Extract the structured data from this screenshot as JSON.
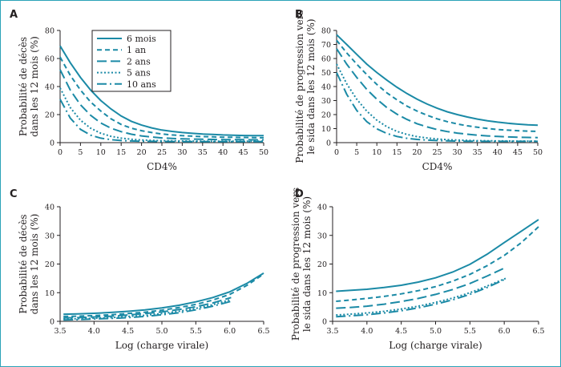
{
  "colors": {
    "line": "#1b8aa6",
    "text": "#231f20",
    "frame": "#2aa3b8"
  },
  "legend": [
    {
      "label": "6 mois",
      "dash": "solid"
    },
    {
      "label": "1 an",
      "dash": "dashed"
    },
    {
      "label": "2 ans",
      "dash": "longdash"
    },
    {
      "label": "5 ans",
      "dash": "dotted"
    },
    {
      "label": "10 ans",
      "dash": "dashdot"
    }
  ],
  "chart_data": [
    {
      "panel": "A",
      "type": "line",
      "xlabel": "CD4%",
      "ylabel": [
        "Probabilité de décès",
        "dans les 12 mois (%)"
      ],
      "xlim": [
        0,
        50
      ],
      "ylim": [
        0,
        80
      ],
      "xticks": [
        0,
        5,
        10,
        15,
        20,
        25,
        30,
        35,
        40,
        45,
        50
      ],
      "yticks": [
        0,
        20,
        40,
        60,
        80
      ],
      "show_legend": true,
      "series": [
        {
          "name": "6 mois",
          "dash": "solid",
          "x": [
            0,
            2.5,
            5,
            7.5,
            10,
            12.5,
            15,
            17.5,
            20,
            22.5,
            25,
            27.5,
            30,
            32.5,
            35,
            37.5,
            40,
            42.5,
            45,
            47.5,
            50
          ],
          "y": [
            69,
            57,
            46.5,
            37.5,
            30,
            24,
            19,
            15.2,
            12.5,
            10.5,
            9,
            8,
            7.2,
            6.6,
            6.1,
            5.8,
            5.5,
            5.3,
            5.1,
            5.0,
            5.0
          ]
        },
        {
          "name": "1 an",
          "dash": "dashed",
          "x": [
            0,
            2.5,
            5,
            7.5,
            10,
            12.5,
            15,
            17.5,
            20,
            22.5,
            25,
            27.5,
            30,
            32.5,
            35,
            37.5,
            40,
            42.5,
            45,
            47.5,
            50
          ],
          "y": [
            61,
            48,
            37.5,
            29,
            22.5,
            17,
            13,
            10.3,
            8.5,
            7.2,
            6.2,
            5.5,
            5,
            4.6,
            4.3,
            4.1,
            3.9,
            3.8,
            3.7,
            3.6,
            3.5
          ]
        },
        {
          "name": "2 ans",
          "dash": "longdash",
          "x": [
            0,
            2.5,
            5,
            7.5,
            10,
            12.5,
            15,
            17.5,
            20,
            22.5,
            25,
            27.5,
            30,
            32.5,
            35,
            37.5,
            40,
            42.5,
            45,
            47.5,
            50
          ],
          "y": [
            52,
            37.5,
            27,
            19.5,
            14,
            10.3,
            7.8,
            6,
            4.8,
            4,
            3.4,
            3,
            2.7,
            2.5,
            2.4,
            2.3,
            2.2,
            2.1,
            2.1,
            2.0,
            2.0
          ]
        },
        {
          "name": "5 ans",
          "dash": "dotted",
          "x": [
            0,
            2.5,
            5,
            7.5,
            10,
            12.5,
            15,
            17.5,
            20,
            22.5,
            25,
            27.5,
            30,
            32.5,
            35,
            37.5,
            40,
            42.5,
            45,
            47.5,
            50
          ],
          "y": [
            39,
            25,
            16,
            10.3,
            6.7,
            4.5,
            3.2,
            2.4,
            1.9,
            1.6,
            1.4,
            1.3,
            1.2,
            1.1,
            1.1,
            1.0,
            1.0,
            1.0,
            1.0,
            1.0,
            1.0
          ]
        },
        {
          "name": "10 ans",
          "dash": "dashdot",
          "x": [
            0,
            2.5,
            5,
            7.5,
            10,
            12.5,
            15,
            17.5,
            20,
            22.5,
            25,
            27.5,
            30,
            32.5,
            35,
            37.5,
            40,
            42.5,
            45,
            47.5,
            50
          ],
          "y": [
            31,
            17.5,
            9.5,
            5.3,
            3.2,
            2.1,
            1.5,
            1.2,
            1.0,
            0.9,
            0.8,
            0.8,
            0.7,
            0.7,
            0.7,
            0.7,
            0.7,
            0.7,
            0.7,
            0.7,
            0.7
          ]
        }
      ]
    },
    {
      "panel": "B",
      "type": "line",
      "xlabel": "CD4%",
      "ylabel": [
        "Probabilité de progression vers",
        "le sida dans les 12 mois (%)"
      ],
      "xlim": [
        0,
        50
      ],
      "ylim": [
        0,
        80
      ],
      "xticks": [
        0,
        5,
        10,
        15,
        20,
        25,
        30,
        35,
        40,
        45,
        50
      ],
      "yticks": [
        0,
        10,
        20,
        30,
        40,
        50,
        60,
        70,
        80
      ],
      "show_legend": false,
      "series": [
        {
          "name": "6 mois",
          "dash": "solid",
          "x": [
            0,
            2.5,
            5,
            7.5,
            10,
            12.5,
            15,
            17.5,
            20,
            22.5,
            25,
            27.5,
            30,
            32.5,
            35,
            37.5,
            40,
            42.5,
            45,
            47.5,
            50
          ],
          "y": [
            77,
            70,
            63,
            56,
            50,
            44.5,
            39.5,
            35,
            31,
            27.5,
            24.5,
            22,
            20,
            18.3,
            16.8,
            15.6,
            14.6,
            13.8,
            13.2,
            12.7,
            12.4
          ]
        },
        {
          "name": "1 an",
          "dash": "dashed",
          "x": [
            0,
            2.5,
            5,
            7.5,
            10,
            12.5,
            15,
            17.5,
            20,
            22.5,
            25,
            27.5,
            30,
            32.5,
            35,
            37.5,
            40,
            42.5,
            45,
            47.5,
            50
          ],
          "y": [
            73,
            64,
            56,
            48.5,
            41.5,
            35.5,
            30.5,
            26,
            22.5,
            19.5,
            17,
            15,
            13.3,
            12,
            11,
            10.1,
            9.4,
            8.9,
            8.5,
            8.2,
            8.0
          ]
        },
        {
          "name": "2 ans",
          "dash": "longdash",
          "x": [
            0,
            2.5,
            5,
            7.5,
            10,
            12.5,
            15,
            17.5,
            20,
            22.5,
            25,
            27.5,
            30,
            32.5,
            35,
            37.5,
            40,
            42.5,
            45,
            47.5,
            50
          ],
          "y": [
            67,
            56,
            46.5,
            38,
            31,
            25,
            20.3,
            16.5,
            13.5,
            11.2,
            9.3,
            7.9,
            6.8,
            6,
            5.3,
            4.8,
            4.4,
            4.1,
            3.9,
            3.7,
            3.6
          ]
        },
        {
          "name": "5 ans",
          "dash": "dotted",
          "x": [
            0,
            2.5,
            5,
            7.5,
            10,
            12.5,
            15,
            17.5,
            20,
            22.5,
            25,
            27.5,
            30,
            32.5,
            35,
            37.5,
            40,
            42.5,
            45,
            47.5,
            50
          ],
          "y": [
            56,
            42,
            31,
            22.5,
            16,
            11.3,
            8,
            5.8,
            4.3,
            3.3,
            2.6,
            2.1,
            1.8,
            1.6,
            1.4,
            1.3,
            1.2,
            1.2,
            1.1,
            1.1,
            1.1
          ]
        },
        {
          "name": "10 ans",
          "dash": "dashdot",
          "x": [
            0,
            2.5,
            5,
            7.5,
            10,
            12.5,
            15,
            17.5,
            20,
            22.5,
            25,
            27.5,
            30,
            32.5,
            35,
            37.5,
            40,
            42.5,
            45,
            47.5,
            50
          ],
          "y": [
            50,
            34.5,
            23,
            15,
            9.8,
            6.5,
            4.4,
            3.1,
            2.3,
            1.8,
            1.5,
            1.3,
            1.1,
            1.0,
            1.0,
            0.9,
            0.9,
            0.9,
            0.9,
            0.9,
            0.9
          ]
        }
      ]
    },
    {
      "panel": "C",
      "type": "line",
      "xlabel": "Log (charge virale)",
      "ylabel": [
        "Probabilité de décès",
        "dans les 12 mois (%)"
      ],
      "xlim": [
        3.5,
        6.5
      ],
      "ylim": [
        0,
        40
      ],
      "xticks": [
        3.5,
        4.0,
        4.5,
        5.0,
        5.5,
        6.0,
        6.5
      ],
      "xtick_labels": [
        "3.5",
        "4.0",
        "4.5",
        "5.0",
        "5.5",
        "6.0",
        "6.5"
      ],
      "yticks": [
        0,
        10,
        20,
        30,
        40
      ],
      "show_legend": false,
      "series": [
        {
          "name": "6 mois",
          "dash": "solid",
          "x": [
            3.55,
            3.75,
            4.0,
            4.25,
            4.5,
            4.75,
            5.0,
            5.25,
            5.5,
            5.75,
            6.0,
            6.25,
            6.5
          ],
          "y": [
            2.5,
            2.6,
            2.8,
            3.1,
            3.5,
            4.0,
            4.7,
            5.6,
            6.8,
            8.3,
            10.3,
            13.2,
            16.8
          ]
        },
        {
          "name": "1 an",
          "dash": "dashed",
          "x": [
            3.55,
            3.75,
            4.0,
            4.25,
            4.5,
            4.75,
            5.0,
            5.25,
            5.5,
            5.75,
            6.0,
            6.25,
            6.5
          ],
          "y": [
            1.7,
            1.8,
            2.0,
            2.3,
            2.7,
            3.2,
            3.9,
            4.8,
            5.9,
            7.4,
            9.4,
            12.5,
            16.5
          ]
        },
        {
          "name": "2 ans",
          "dash": "longdash",
          "x": [
            3.55,
            3.75,
            4.0,
            4.25,
            4.5,
            4.75,
            5.0,
            5.25,
            5.5,
            5.75,
            6.02
          ],
          "y": [
            1.2,
            1.3,
            1.5,
            1.8,
            2.2,
            2.7,
            3.3,
            4.1,
            5.1,
            6.4,
            8.3
          ]
        },
        {
          "name": "5 ans",
          "dash": "dotted",
          "x": [
            3.55,
            3.75,
            4.0,
            4.25,
            4.5,
            4.75,
            5.0,
            5.25,
            5.5,
            5.75,
            6.02
          ],
          "y": [
            0.8,
            0.9,
            1.1,
            1.3,
            1.7,
            2.1,
            2.7,
            3.5,
            4.5,
            5.8,
            7.6
          ]
        },
        {
          "name": "10 ans",
          "dash": "dashdot",
          "x": [
            3.55,
            3.75,
            4.0,
            4.25,
            4.5,
            4.75,
            5.0,
            5.25,
            5.5,
            5.75,
            6.02
          ],
          "y": [
            0.5,
            0.6,
            0.8,
            1.0,
            1.3,
            1.7,
            2.3,
            3.0,
            4.0,
            5.3,
            7.0
          ]
        }
      ]
    },
    {
      "panel": "D",
      "type": "line",
      "xlabel": "Log (charge virale)",
      "ylabel": [
        "Probabilité de progression vers",
        "le sida dans les 12 mois (%)"
      ],
      "xlim": [
        3.5,
        6.5
      ],
      "ylim": [
        0,
        40
      ],
      "xticks": [
        3.5,
        4.0,
        4.5,
        5.0,
        5.5,
        6.0,
        6.5
      ],
      "xtick_labels": [
        "3.5",
        "4.0",
        "4.5",
        "5.0",
        "5.5",
        "6.0",
        "6.5"
      ],
      "yticks": [
        0,
        10,
        20,
        30,
        40
      ],
      "show_legend": false,
      "series": [
        {
          "name": "6 mois",
          "dash": "solid",
          "x": [
            3.55,
            3.75,
            4.0,
            4.25,
            4.5,
            4.75,
            5.0,
            5.25,
            5.5,
            5.75,
            6.0,
            6.25,
            6.5
          ],
          "y": [
            10.5,
            10.8,
            11.2,
            11.8,
            12.6,
            13.7,
            15.2,
            17.2,
            19.9,
            23.4,
            27.5,
            31.5,
            35.5
          ]
        },
        {
          "name": "1 an",
          "dash": "dashed",
          "x": [
            3.55,
            3.75,
            4.0,
            4.25,
            4.5,
            4.75,
            5.0,
            5.25,
            5.5,
            5.75,
            6.0,
            6.25,
            6.5
          ],
          "y": [
            7.0,
            7.4,
            8.0,
            8.7,
            9.6,
            10.7,
            12.1,
            14.0,
            16.4,
            19.4,
            23.0,
            27.5,
            33.0
          ]
        },
        {
          "name": "2 ans",
          "dash": "longdash",
          "x": [
            3.55,
            3.75,
            4.0,
            4.25,
            4.5,
            4.75,
            5.0,
            5.25,
            5.5,
            5.75,
            6.02
          ],
          "y": [
            4.6,
            4.8,
            5.3,
            6.0,
            6.9,
            8.0,
            9.4,
            11.1,
            13.2,
            15.8,
            18.8
          ]
        },
        {
          "name": "5 ans",
          "dash": "dotted",
          "x": [
            3.55,
            3.75,
            4.0,
            4.25,
            4.5,
            4.75,
            5.0,
            5.25,
            5.5,
            5.75,
            6.02
          ],
          "y": [
            2.2,
            2.5,
            2.9,
            3.5,
            4.3,
            5.3,
            6.6,
            8.1,
            10.0,
            12.3,
            15.0
          ]
        },
        {
          "name": "10 ans",
          "dash": "dashdot",
          "x": [
            3.55,
            3.75,
            4.0,
            4.25,
            4.5,
            4.75,
            5.0,
            5.25,
            5.5,
            5.75,
            6.02
          ],
          "y": [
            1.6,
            1.9,
            2.3,
            2.9,
            3.7,
            4.7,
            6.0,
            7.5,
            9.4,
            11.8,
            14.8
          ]
        }
      ]
    }
  ]
}
